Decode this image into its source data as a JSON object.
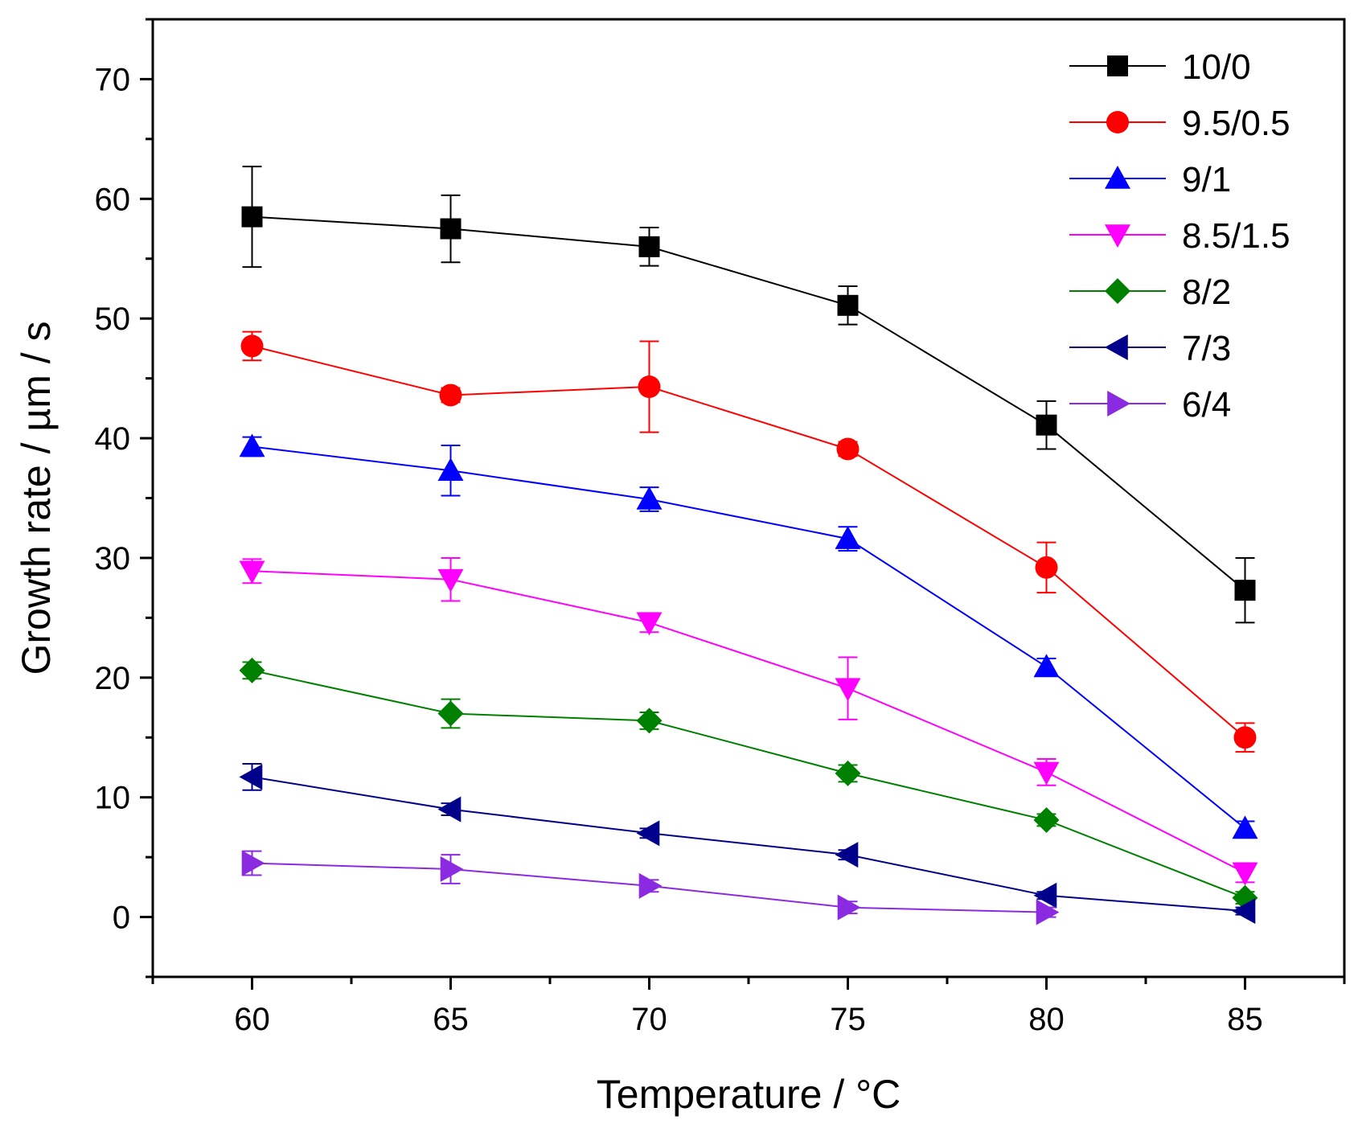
{
  "chart_data": {
    "type": "line",
    "title": "",
    "xlabel": "Temperature / °C",
    "ylabel": "Growth rate / µm / s",
    "xlim": [
      57.5,
      87.5
    ],
    "ylim": [
      -5,
      75
    ],
    "x_ticks": [
      60,
      65,
      70,
      75,
      80,
      85
    ],
    "x_tick_labels": [
      "60",
      "65",
      "70",
      "75",
      "80",
      "85"
    ],
    "y_ticks": [
      0,
      10,
      20,
      30,
      40,
      50,
      60,
      70
    ],
    "y_tick_labels": [
      "0",
      "10",
      "20",
      "30",
      "40",
      "50",
      "60",
      "70"
    ],
    "grid": false,
    "legend_position": "top-right",
    "series": [
      {
        "name": "10/0",
        "color": "#000000",
        "marker": "square",
        "x": [
          60,
          65,
          70,
          75,
          80,
          85
        ],
        "y": [
          58.5,
          57.5,
          56.0,
          51.1,
          41.1,
          27.3
        ],
        "error": [
          4.2,
          2.8,
          1.6,
          1.6,
          2.0,
          2.7
        ]
      },
      {
        "name": "9.5/0.5",
        "color": "#ff0000",
        "marker": "circle",
        "x": [
          60,
          65,
          70,
          75,
          80,
          85
        ],
        "y": [
          47.7,
          43.6,
          44.3,
          39.1,
          29.2,
          15.0
        ],
        "error": [
          1.2,
          0.6,
          3.8,
          0.6,
          2.1,
          1.2
        ]
      },
      {
        "name": "9/1",
        "color": "#0000ff",
        "marker": "triangle-up",
        "x": [
          60,
          65,
          70,
          75,
          80,
          85
        ],
        "y": [
          39.3,
          37.3,
          34.9,
          31.6,
          20.9,
          7.4
        ],
        "error": [
          0.8,
          2.1,
          1.0,
          1.0,
          0.7,
          0.6
        ]
      },
      {
        "name": "8.5/1.5",
        "color": "#ff00ff",
        "marker": "triangle-down",
        "x": [
          60,
          65,
          70,
          75,
          80,
          85
        ],
        "y": [
          28.9,
          28.2,
          24.6,
          19.1,
          12.1,
          3.7
        ],
        "error": [
          1.0,
          1.8,
          0.8,
          2.6,
          1.1,
          0.8
        ]
      },
      {
        "name": "8/2",
        "color": "#008000",
        "marker": "diamond",
        "x": [
          60,
          65,
          70,
          75,
          80,
          85
        ],
        "y": [
          20.6,
          17.0,
          16.4,
          12.0,
          8.1,
          1.6
        ],
        "error": [
          0.7,
          1.2,
          0.7,
          0.7,
          0.5,
          0.5
        ]
      },
      {
        "name": "7/3",
        "color": "#00008b",
        "marker": "triangle-left",
        "x": [
          60,
          65,
          70,
          75,
          80,
          85
        ],
        "y": [
          11.7,
          9.0,
          7.0,
          5.2,
          1.8,
          0.5
        ],
        "error": [
          1.1,
          0.5,
          0.4,
          0.4,
          0.3,
          0.3
        ]
      },
      {
        "name": "6/4",
        "color": "#8a2be2",
        "marker": "triangle-right",
        "x": [
          60,
          65,
          70,
          75,
          80
        ],
        "y": [
          4.5,
          4.0,
          2.6,
          0.8,
          0.4
        ],
        "error": [
          1.0,
          1.2,
          0.5,
          0.5,
          0.4
        ]
      }
    ]
  }
}
